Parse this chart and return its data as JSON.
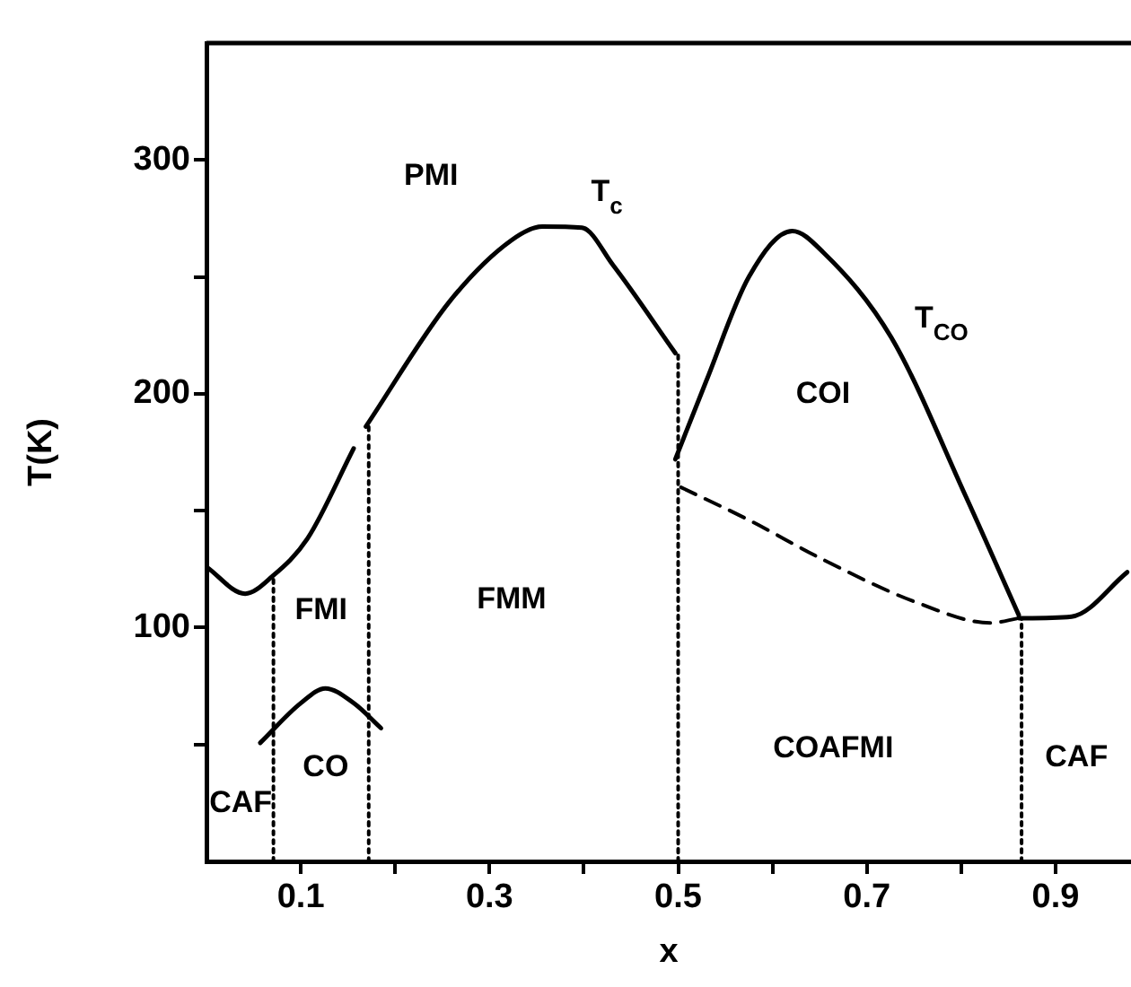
{
  "chart_data": {
    "type": "line",
    "xlabel": "x",
    "ylabel": "T(K)",
    "xlim": [
      0,
      0.98
    ],
    "ylim": [
      0,
      350
    ],
    "xticks": [
      0.1,
      {
        "value": 0.2,
        "label": null
      },
      0.3,
      {
        "value": 0.4,
        "label": null
      },
      0.5,
      {
        "value": 0.6,
        "label": null
      },
      0.7,
      {
        "value": 0.8,
        "label": null
      },
      0.9
    ],
    "yticks": [
      {
        "value": 50,
        "label": null
      },
      100,
      {
        "value": 150,
        "label": null
      },
      200,
      {
        "value": 250,
        "label": null
      },
      300
    ],
    "grid": false,
    "legend": false,
    "marker": "none",
    "series": [
      {
        "color": "#000000",
        "line_style": "solid",
        "x": [
          0,
          0.041,
          0.07,
          0.107,
          0.156
        ],
        "values": [
          126,
          114.5,
          122,
          138,
          176.6
        ]
      },
      {
        "name": "T$_{c}$",
        "color": "#000000",
        "line_style": "solid",
        "x": [
          0.169,
          0.258,
          0.323,
          0.356,
          0.398,
          0.431,
          0.497
        ],
        "values": [
          186,
          239.6,
          265.6,
          271.5,
          271,
          255,
          217.4
        ]
      },
      {
        "name": "T$_{CO}$",
        "color": "#000000",
        "line_style": "solid",
        "x": [
          0.497,
          0.53,
          0.575,
          0.621,
          0.654,
          0.726,
          0.805,
          0.861
        ],
        "values": [
          172,
          205.7,
          250,
          269.6,
          260.4,
          224,
          156,
          105.4
        ]
      },
      {
        "color": "#000000",
        "line_style": "dashed",
        "x": [
          0.503,
          0.575,
          0.654,
          0.753,
          0.831,
          0.861
        ],
        "values": [
          160,
          146,
          129,
          110.7,
          102,
          104
        ]
      },
      {
        "color": "#000000",
        "line_style": "solid",
        "x": [
          0.861,
          0.917,
          0.976
        ],
        "values": [
          104,
          104.7,
          123.7
        ]
      },
      {
        "color": "#000000",
        "line_style": "solid",
        "x": [
          0.057,
          0.1,
          0.126,
          0.156,
          0.185
        ],
        "values": [
          50.7,
          67.7,
          74,
          67.7,
          57
        ]
      },
      {
        "color": "#000000",
        "line_style": "dotted",
        "x": [
          0.071,
          0.071
        ],
        "values": [
          0,
          122
        ]
      },
      {
        "color": "#000000",
        "line_style": "dotted",
        "x": [
          0.172,
          0.172
        ],
        "values": [
          0,
          186
        ]
      },
      {
        "color": "#000000",
        "line_style": "dotted",
        "x": [
          0.5,
          0.5
        ],
        "values": [
          0,
          217.4
        ]
      },
      {
        "color": "#000000",
        "line_style": "dotted",
        "x": [
          0.864,
          0.864
        ],
        "values": [
          0,
          104
        ]
      }
    ],
    "annotations": [
      "PMI",
      "COI",
      "FMM",
      "FMI",
      "CO",
      "CAF",
      "COAFMI",
      "CAF"
    ]
  }
}
